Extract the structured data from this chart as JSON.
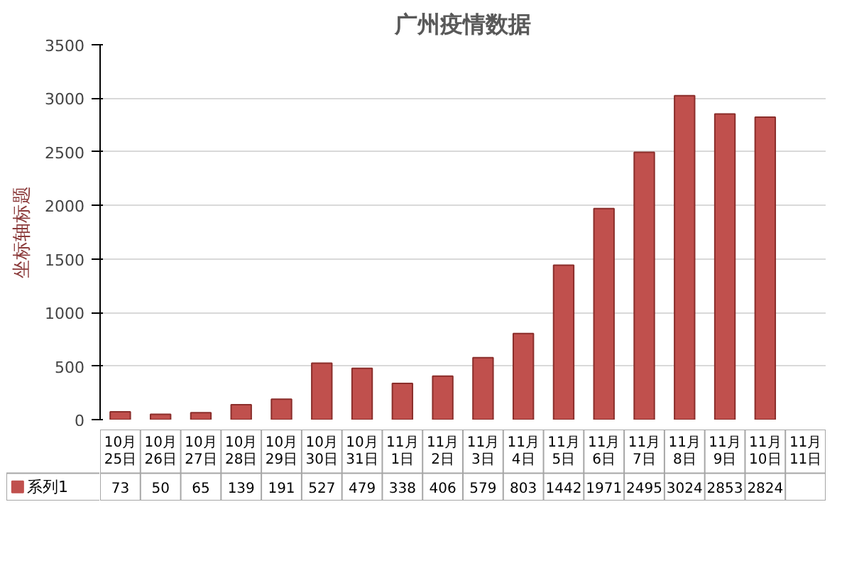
{
  "chart_data": {
    "type": "bar",
    "title": "广州疫情数据",
    "ylabel": "坐标轴标题",
    "categories": [
      "10月25日",
      "10月26日",
      "10月27日",
      "10月28日",
      "10月29日",
      "10月30日",
      "10月31日",
      "11月1日",
      "11月2日",
      "11月3日",
      "11月4日",
      "11月5日",
      "11月6日",
      "11月7日",
      "11月8日",
      "11月9日",
      "11月10日",
      "11月11日"
    ],
    "series": [
      {
        "name": "系列1",
        "color": "#c0504d",
        "values": [
          73,
          50,
          65,
          139,
          191,
          527,
          479,
          338,
          406,
          579,
          803,
          1442,
          1971,
          2495,
          3024,
          2853,
          2824,
          null
        ]
      }
    ],
    "ylim": [
      0,
      3500
    ],
    "yticks": [
      0,
      500,
      1000,
      1500,
      2000,
      2500,
      3000,
      3500
    ],
    "grid": "y",
    "data_labels": true
  }
}
